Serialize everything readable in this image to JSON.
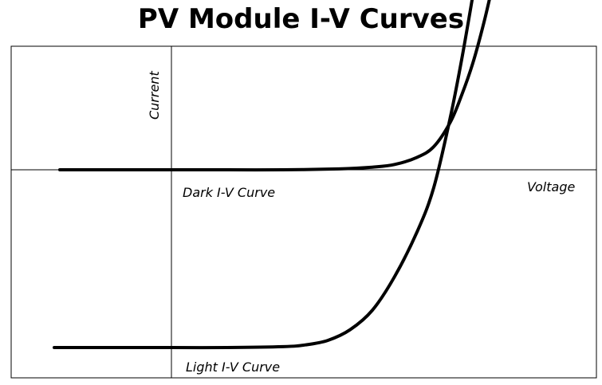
{
  "chart_data": {
    "type": "line",
    "title": "PV Module I-V Curves",
    "xlabel": "Voltage",
    "ylabel": "Current",
    "grid": false,
    "legend": "none",
    "xlim": [
      -1.0,
      3.0
    ],
    "ylim": [
      -1.0,
      1.2
    ],
    "series": [
      {
        "name": "Dark I-V Curve",
        "x": [
          -1.0,
          -0.5,
          0.0,
          0.5,
          1.0,
          1.5,
          1.8,
          2.0,
          2.2,
          2.35,
          2.5,
          2.6,
          2.7,
          2.8,
          2.9
        ],
        "y": [
          0.0,
          0.0,
          0.0,
          0.0,
          0.0,
          0.005,
          0.015,
          0.03,
          0.07,
          0.13,
          0.27,
          0.42,
          0.6,
          0.83,
          1.1
        ],
        "color": "#000000"
      },
      {
        "name": "Light I-V Curve",
        "x": [
          -1.05,
          -0.5,
          0.0,
          0.5,
          1.0,
          1.2,
          1.4,
          1.6,
          1.8,
          2.0,
          2.2,
          2.35,
          2.5,
          2.6,
          2.7
        ],
        "y": [
          -1.0,
          -1.0,
          -1.0,
          -1.0,
          -0.995,
          -0.985,
          -0.96,
          -0.9,
          -0.79,
          -0.6,
          -0.35,
          -0.1,
          0.3,
          0.62,
          0.98
        ],
        "color": "#000000"
      }
    ],
    "annotations": [
      "Dark I-V Curve",
      "Light I-V Curve"
    ]
  }
}
